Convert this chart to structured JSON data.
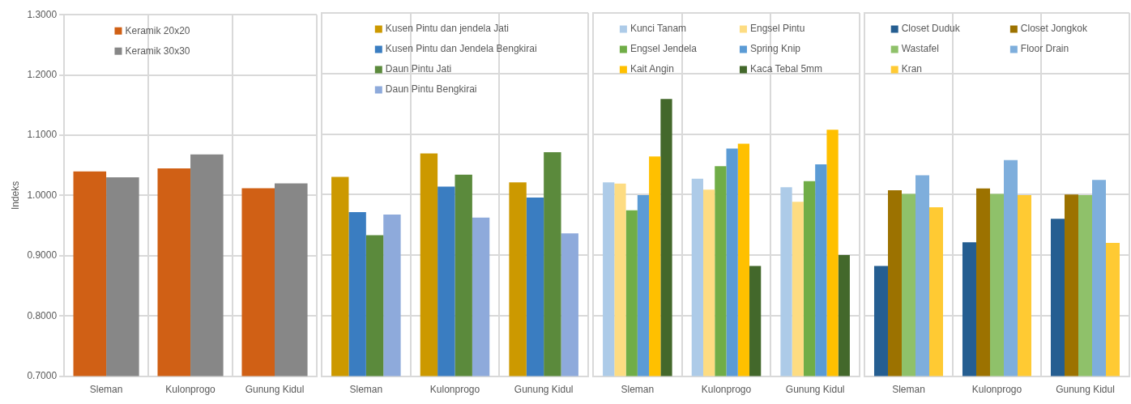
{
  "chart_data": [
    {
      "type": "bar",
      "ylabel": "Indeks",
      "categories": [
        "Sleman",
        "Kulonprogo",
        "Gunung Kidul"
      ],
      "series": [
        {
          "name": "Keramik 20x20",
          "color": "#d06015",
          "values": [
            1.04,
            1.045,
            1.012
          ]
        },
        {
          "name": "Keramik 30x30",
          "color": "#878787",
          "values": [
            1.03,
            1.068,
            1.02
          ]
        }
      ],
      "ylim": [
        0.7,
        1.3
      ],
      "yticks": [
        {
          "value": 0.7,
          "label": "0.7000"
        },
        {
          "value": 0.8,
          "label": "0.8000"
        },
        {
          "value": 0.9,
          "label": "0.9000"
        },
        {
          "value": 1.0,
          "label": "1.0000"
        },
        {
          "value": 1.1,
          "label": "1.1000"
        },
        {
          "value": 1.2,
          "label": "1.2000"
        },
        {
          "value": 1.3,
          "label": "1.3000"
        }
      ],
      "grid": true,
      "legend": "top"
    },
    {
      "type": "bar",
      "categories": [
        "Sleman",
        "Kulonprogo",
        "Gunung Kidul"
      ],
      "series": [
        {
          "name": "Kusen Pintu dan jendela Jati",
          "color": "#cc9900",
          "values": [
            1.029,
            1.068,
            1.02
          ]
        },
        {
          "name": "Kusen Pintu dan Jendela Bengkirai",
          "color": "#3a7dc1",
          "values": [
            0.971,
            1.013,
            0.995
          ]
        },
        {
          "name": "Daun Pintu Jati",
          "color": "#5b8a3c",
          "values": [
            0.933,
            1.033,
            1.07
          ]
        },
        {
          "name": "Daun Pintu Bengkirai",
          "color": "#8eaadb",
          "values": [
            0.967,
            0.962,
            0.936
          ]
        }
      ],
      "ylim": [
        0.7,
        1.3
      ],
      "yticks": [
        0.7,
        0.8,
        0.9,
        1.0,
        1.1,
        1.2,
        1.3
      ],
      "grid": true,
      "legend": "top",
      "tick_labels": "x"
    },
    {
      "type": "bar",
      "categories": [
        "Sleman",
        "Kulonprogo",
        "Gunung Kidul"
      ],
      "series": [
        {
          "name": "Kunci Tanam",
          "color": "#adcbe8",
          "values": [
            1.02,
            1.026,
            1.012
          ]
        },
        {
          "name": "Engsel Pintu",
          "color": "#fddc82",
          "values": [
            1.018,
            1.008,
            0.988
          ]
        },
        {
          "name": "Engsel Jendela",
          "color": "#70ad47",
          "values": [
            0.974,
            1.047,
            1.022
          ]
        },
        {
          "name": "Spring Knip",
          "color": "#5b9bd5",
          "values": [
            0.999,
            1.076,
            1.05
          ]
        },
        {
          "name": "Kait Angin",
          "color": "#ffc000",
          "values": [
            1.063,
            1.084,
            1.107
          ]
        },
        {
          "name": "Kaca Tebal 5mm",
          "color": "#43682b",
          "values": [
            1.158,
            0.882,
            0.9
          ]
        }
      ],
      "ylim": [
        0.7,
        1.3
      ],
      "yticks": [
        0.7,
        0.8,
        0.9,
        1.0,
        1.1,
        1.2,
        1.3
      ],
      "grid": true,
      "legend": "top",
      "tick_labels": "x"
    },
    {
      "type": "bar",
      "categories": [
        "Sleman",
        "Kulonprogo",
        "Gunung Kidul"
      ],
      "series": [
        {
          "name": "Closet Duduk",
          "color": "#255e91",
          "values": [
            0.882,
            0.921,
            0.96
          ]
        },
        {
          "name": "Closet Jongkok",
          "color": "#9c7200",
          "values": [
            1.007,
            1.01,
            1.0
          ]
        },
        {
          "name": "Wastafel",
          "color": "#8fc16a",
          "values": [
            1.001,
            1.001,
            0.999
          ]
        },
        {
          "name": "Floor Drain",
          "color": "#7eaedc",
          "values": [
            1.032,
            1.057,
            1.024
          ]
        },
        {
          "name": "Kran",
          "color": "#ffca33",
          "values": [
            0.979,
            0.999,
            0.92
          ]
        }
      ],
      "ylim": [
        0.7,
        1.3
      ],
      "yticks": [
        0.7,
        0.8,
        0.9,
        1.0,
        1.1,
        1.2,
        1.3
      ],
      "grid": true,
      "legend": "top",
      "tick_labels": "x"
    }
  ]
}
